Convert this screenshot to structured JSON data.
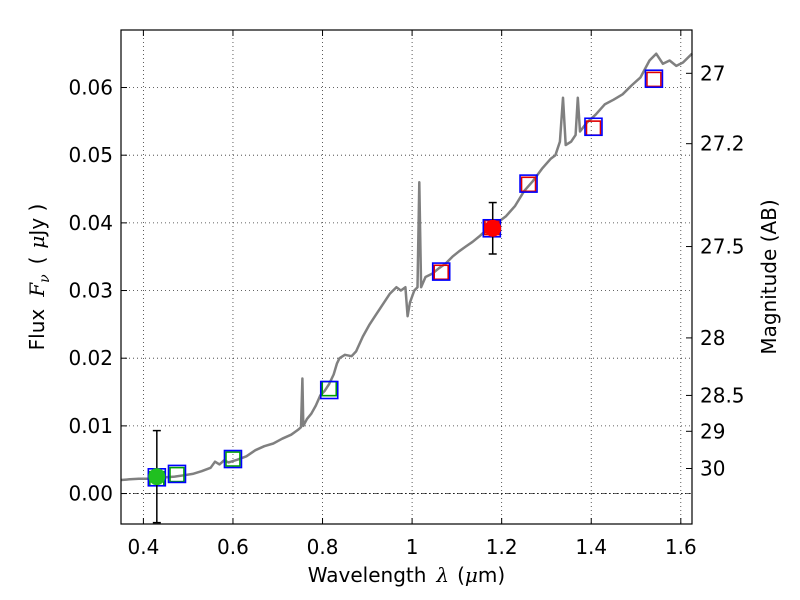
{
  "chart_data": {
    "type": "scatter",
    "xlabel_parts": [
      "Wavelength",
      "λ",
      "(",
      "μ",
      "m)"
    ],
    "ylabel_parts": [
      "Flux",
      "F",
      "ν",
      "(",
      "μ",
      "Jy )"
    ],
    "y2label": "Magnitude (AB)",
    "xlim": [
      0.35,
      1.625
    ],
    "ylim": [
      -0.0045,
      0.0685
    ],
    "grid": true,
    "x_ticks": [
      {
        "value": 0.4,
        "label": "0.4"
      },
      {
        "value": 0.6,
        "label": "0.6"
      },
      {
        "value": 0.8,
        "label": "0.8"
      },
      {
        "value": 1.0,
        "label": "1"
      },
      {
        "value": 1.2,
        "label": "1.2"
      },
      {
        "value": 1.4,
        "label": "1.4"
      },
      {
        "value": 1.6,
        "label": "1.6"
      }
    ],
    "y_ticks": [
      {
        "value": 0.0,
        "label": "0.00"
      },
      {
        "value": 0.01,
        "label": "0.01"
      },
      {
        "value": 0.02,
        "label": "0.02"
      },
      {
        "value": 0.03,
        "label": "0.03"
      },
      {
        "value": 0.04,
        "label": "0.04"
      },
      {
        "value": 0.05,
        "label": "0.05"
      },
      {
        "value": 0.06,
        "label": "0.06"
      }
    ],
    "y2_ticks": [
      {
        "flux": 0.0621,
        "label": "27"
      },
      {
        "flux": 0.0517,
        "label": "27.2"
      },
      {
        "flux": 0.0365,
        "label": "27.5"
      },
      {
        "flux": 0.023,
        "label": "28"
      },
      {
        "flux": 0.0145,
        "label": "28.5"
      },
      {
        "flux": 0.0092,
        "label": "29"
      },
      {
        "flux": 0.0037,
        "label": "30"
      }
    ],
    "series": [
      {
        "name": "model spectrum",
        "style": "line",
        "color": "#808080",
        "points": [
          [
            0.35,
            0.002
          ],
          [
            0.37,
            0.0021
          ],
          [
            0.39,
            0.0022
          ],
          [
            0.41,
            0.0022
          ],
          [
            0.43,
            0.0023
          ],
          [
            0.45,
            0.0024
          ],
          [
            0.47,
            0.0025
          ],
          [
            0.49,
            0.0027
          ],
          [
            0.51,
            0.0029
          ],
          [
            0.53,
            0.0033
          ],
          [
            0.55,
            0.0038
          ],
          [
            0.56,
            0.0047
          ],
          [
            0.57,
            0.0043
          ],
          [
            0.58,
            0.0049
          ],
          [
            0.59,
            0.0046
          ],
          [
            0.61,
            0.005
          ],
          [
            0.63,
            0.0055
          ],
          [
            0.65,
            0.0064
          ],
          [
            0.67,
            0.007
          ],
          [
            0.69,
            0.0074
          ],
          [
            0.71,
            0.0081
          ],
          [
            0.73,
            0.0087
          ],
          [
            0.745,
            0.0094
          ],
          [
            0.752,
            0.0098
          ],
          [
            0.755,
            0.017
          ],
          [
            0.757,
            0.01
          ],
          [
            0.765,
            0.011
          ],
          [
            0.775,
            0.0118
          ],
          [
            0.785,
            0.013
          ],
          [
            0.795,
            0.0145
          ],
          [
            0.805,
            0.0152
          ],
          [
            0.815,
            0.0162
          ],
          [
            0.825,
            0.0176
          ],
          [
            0.832,
            0.0192
          ],
          [
            0.838,
            0.02
          ],
          [
            0.85,
            0.0205
          ],
          [
            0.865,
            0.0203
          ],
          [
            0.875,
            0.021
          ],
          [
            0.89,
            0.0232
          ],
          [
            0.905,
            0.025
          ],
          [
            0.92,
            0.0265
          ],
          [
            0.935,
            0.028
          ],
          [
            0.95,
            0.0295
          ],
          [
            0.965,
            0.0305
          ],
          [
            0.975,
            0.03
          ],
          [
            0.985,
            0.0305
          ],
          [
            0.99,
            0.0262
          ],
          [
            0.995,
            0.0282
          ],
          [
            1.005,
            0.03
          ],
          [
            1.012,
            0.0305
          ],
          [
            1.016,
            0.046
          ],
          [
            1.02,
            0.0305
          ],
          [
            1.03,
            0.032
          ],
          [
            1.045,
            0.0325
          ],
          [
            1.06,
            0.0333
          ],
          [
            1.075,
            0.034
          ],
          [
            1.09,
            0.035
          ],
          [
            1.105,
            0.0358
          ],
          [
            1.12,
            0.0365
          ],
          [
            1.135,
            0.0372
          ],
          [
            1.15,
            0.038
          ],
          [
            1.17,
            0.0392
          ],
          [
            1.19,
            0.04
          ],
          [
            1.21,
            0.041
          ],
          [
            1.23,
            0.0425
          ],
          [
            1.25,
            0.0447
          ],
          [
            1.27,
            0.0462
          ],
          [
            1.29,
            0.048
          ],
          [
            1.31,
            0.0495
          ],
          [
            1.32,
            0.05
          ],
          [
            1.33,
            0.052
          ],
          [
            1.337,
            0.0585
          ],
          [
            1.343,
            0.0515
          ],
          [
            1.355,
            0.052
          ],
          [
            1.365,
            0.053
          ],
          [
            1.37,
            0.0585
          ],
          [
            1.375,
            0.0535
          ],
          [
            1.39,
            0.0548
          ],
          [
            1.41,
            0.056
          ],
          [
            1.43,
            0.0575
          ],
          [
            1.45,
            0.0582
          ],
          [
            1.47,
            0.059
          ],
          [
            1.49,
            0.0603
          ],
          [
            1.51,
            0.0615
          ],
          [
            1.53,
            0.064
          ],
          [
            1.545,
            0.065
          ],
          [
            1.56,
            0.0635
          ],
          [
            1.575,
            0.064
          ],
          [
            1.59,
            0.0632
          ],
          [
            1.605,
            0.0637
          ],
          [
            1.625,
            0.065
          ]
        ]
      },
      {
        "name": "green open squares",
        "style": "open-square",
        "color": "#00a000",
        "points": [
          [
            0.43,
            0.0022
          ],
          [
            0.475,
            0.0028
          ],
          [
            0.6,
            0.0051
          ],
          [
            0.815,
            0.0155
          ]
        ]
      },
      {
        "name": "red open squares",
        "style": "open-square",
        "color": "#e00000",
        "points": [
          [
            1.065,
            0.0327
          ],
          [
            1.178,
            0.0393
          ],
          [
            1.26,
            0.0457
          ],
          [
            1.405,
            0.054
          ],
          [
            1.54,
            0.0612
          ]
        ]
      },
      {
        "name": "blue open squares",
        "style": "open-square",
        "color": "#0000ff",
        "points": [
          [
            0.43,
            0.0024
          ],
          [
            0.475,
            0.0029
          ],
          [
            0.6,
            0.0051
          ],
          [
            0.815,
            0.0153
          ],
          [
            1.065,
            0.0328
          ],
          [
            1.178,
            0.0392
          ],
          [
            1.26,
            0.0458
          ],
          [
            1.405,
            0.0542
          ],
          [
            1.54,
            0.0613
          ]
        ]
      },
      {
        "name": "green filled point",
        "style": "filled-circle",
        "color": "#20c020",
        "points": [
          [
            0.43,
            0.0025
          ]
        ],
        "errors": [
          [
            -0.0043,
            0.0093
          ]
        ]
      },
      {
        "name": "red filled point",
        "style": "filled-circle",
        "color": "#ff0000",
        "points": [
          [
            1.18,
            0.0392
          ]
        ],
        "errors": [
          [
            0.0354,
            0.043
          ]
        ]
      }
    ]
  }
}
